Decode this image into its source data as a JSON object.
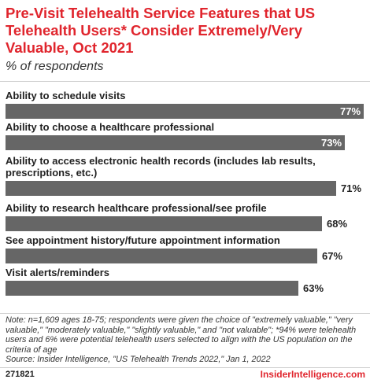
{
  "header": {
    "title": "Pre-Visit Telehealth Service Features that US Telehealth Users* Consider Extremely/Very Valuable, Oct 2021",
    "subtitle": "% of respondents"
  },
  "chart_data": {
    "type": "bar",
    "orientation": "horizontal",
    "categories": [
      "Ability to schedule visits",
      "Ability to choose a healthcare professional",
      "Ability to access electronic health records (includes lab results, prescriptions, etc.)",
      "Ability to research healthcare professional/see profile",
      "See appointment history/future appointment information",
      "Visit alerts/reminders"
    ],
    "values": [
      77,
      73,
      71,
      68,
      67,
      63
    ],
    "value_labels": [
      "77%",
      "73%",
      "71%",
      "68%",
      "67%",
      "63%"
    ],
    "xlim": [
      0,
      77
    ],
    "grid": false,
    "bar_color": "#666666"
  },
  "footer": {
    "note": "Note: n=1,609 ages 18-75; respondents were given the choice of \"extremely valuable,\" \"very valuable,\" \"moderately valuable,\" \"slightly valuable,\" and \"not valuable\"; *94% were telehealth users and 6% were potential telehealth users selected to align with the US population on the criteria of age",
    "source": "Source: Insider Intelligence, \"US Telehealth Trends 2022,\" Jan 1, 2022",
    "chart_id": "271821",
    "brand": "InsiderIntelligence.com"
  },
  "colors": {
    "accent": "#e0252d",
    "bar": "#666666"
  }
}
